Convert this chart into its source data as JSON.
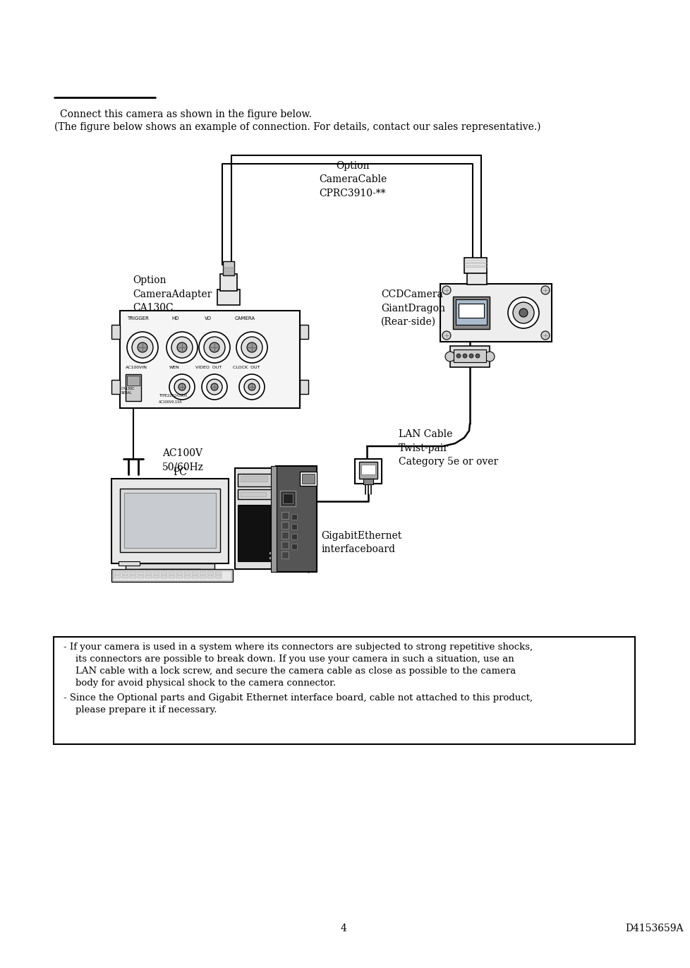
{
  "bg_color": "#ffffff",
  "page_number": "4",
  "doc_number": "D4153659A",
  "intro_line1": "Connect this camera as shown in the figure below.",
  "intro_line2": "(The figure below shows an example of connection. For details, contact our sales representative.)",
  "label_option_adapter": "Option\nCameraAdapter\nCA130C",
  "label_option_cable": "Option\nCameraCable\nCPRC3910-**",
  "label_ccd_camera": "CCDCamera\nGiantDragon\n(Rear-side)",
  "label_ac100v": "AC100V\n50/60Hz",
  "label_pc": "PC",
  "label_lan_cable": "LAN Cable\nTwist-pair\nCategory 5e or over",
  "label_gigabit": "GigabitEthernet\ninterfaceboard",
  "note_line1": "- If your camera is used in a system where its connectors are subjected to strong repetitive shocks,",
  "note_line2": "    its connectors are possible to break down. If you use your camera in such a situation, use an",
  "note_line3": "    LAN cable with a lock screw, and secure the camera cable as close as possible to the camera",
  "note_line4": "    body for avoid physical shock to the camera connector.",
  "note_line5": "- Since the Optional parts and Gigabit Ethernet interface board, cable not attached to this product,",
  "note_line6": "    please prepare it if necessary."
}
